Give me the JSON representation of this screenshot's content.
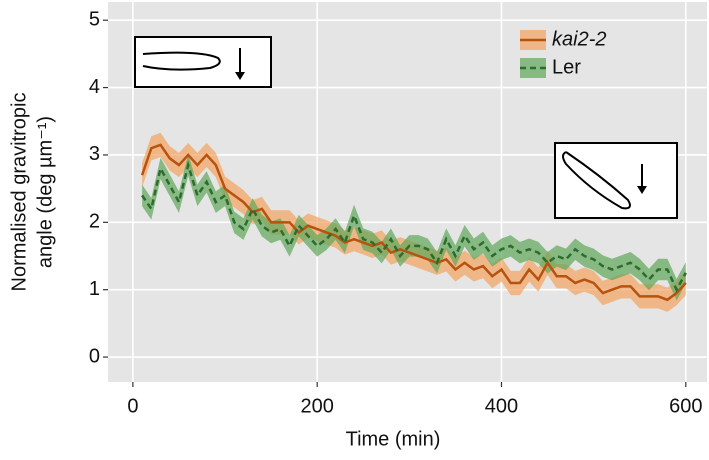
{
  "chart_data": {
    "type": "line",
    "x_label": "Time (min)",
    "y_label": [
      "Normalised gravitropic",
      "angle (deg µm⁻¹)"
    ],
    "x": [
      10,
      20,
      30,
      40,
      50,
      60,
      70,
      80,
      90,
      100,
      110,
      120,
      130,
      140,
      150,
      160,
      170,
      180,
      190,
      200,
      210,
      220,
      230,
      240,
      250,
      260,
      270,
      280,
      290,
      300,
      310,
      320,
      330,
      340,
      350,
      360,
      370,
      380,
      390,
      400,
      410,
      420,
      430,
      440,
      450,
      460,
      470,
      480,
      490,
      500,
      510,
      520,
      530,
      540,
      550,
      560,
      570,
      580,
      590,
      600
    ],
    "series": [
      {
        "name": "kai2-2",
        "color": "#b8520e",
        "band_color": "#f4a460",
        "dash": false,
        "error": 0.18,
        "values": [
          2.7,
          3.1,
          3.15,
          2.95,
          2.85,
          3.0,
          2.85,
          3.0,
          2.85,
          2.5,
          2.4,
          2.3,
          2.15,
          2.2,
          2.0,
          2.0,
          2.0,
          1.85,
          1.95,
          1.9,
          1.85,
          1.8,
          1.7,
          1.75,
          1.7,
          1.65,
          1.7,
          1.55,
          1.6,
          1.55,
          1.5,
          1.45,
          1.4,
          1.45,
          1.3,
          1.4,
          1.3,
          1.35,
          1.2,
          1.3,
          1.1,
          1.1,
          1.3,
          1.15,
          1.4,
          1.2,
          1.2,
          1.1,
          1.15,
          1.1,
          0.95,
          1.0,
          1.05,
          1.05,
          0.9,
          0.9,
          0.9,
          0.85,
          0.95,
          1.1
        ]
      },
      {
        "name": "Ler",
        "color": "#2e6b2e",
        "band_color": "#5fa65a",
        "dash": true,
        "error": 0.16,
        "values": [
          2.4,
          2.2,
          2.8,
          2.55,
          2.3,
          2.85,
          2.4,
          2.6,
          2.3,
          2.4,
          2.0,
          1.9,
          2.2,
          1.95,
          1.85,
          1.9,
          1.65,
          1.95,
          1.8,
          1.65,
          1.75,
          1.9,
          1.7,
          2.1,
          1.75,
          1.7,
          1.55,
          1.75,
          1.5,
          1.65,
          1.65,
          1.6,
          1.4,
          1.75,
          1.5,
          1.8,
          1.6,
          1.7,
          1.5,
          1.6,
          1.65,
          1.55,
          1.6,
          1.55,
          1.4,
          1.5,
          1.45,
          1.6,
          1.5,
          1.45,
          1.35,
          1.3,
          1.35,
          1.4,
          1.3,
          1.15,
          1.3,
          1.3,
          1.0,
          1.25
        ]
      }
    ],
    "xlim": [
      -27,
      623
    ],
    "xticks": [
      0,
      200,
      400,
      600
    ],
    "ylim": [
      -0.37,
      5.27
    ],
    "yticks": [
      0,
      1,
      2,
      3,
      4,
      5
    ],
    "grid": true,
    "legend": "top-right"
  }
}
